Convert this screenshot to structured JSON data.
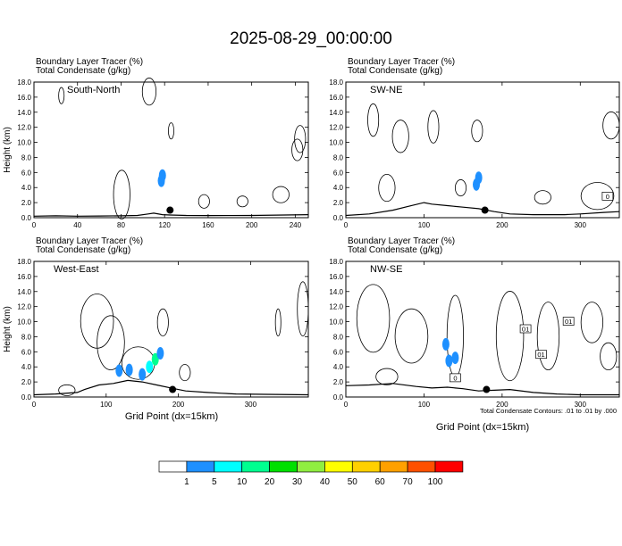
{
  "title": "2025-08-29_00:00:00",
  "panel_header": {
    "line1": "Boundary Layer Tracer   (%)",
    "line2": "Total Condensate   (g/kg)"
  },
  "footer_note": "Total Condensate Contours: .01 to .01 by .000",
  "colorbar": {
    "labels": [
      "1",
      "5",
      "10",
      "20",
      "30",
      "40",
      "50",
      "60",
      "70",
      "100"
    ],
    "colors": [
      "#ffffff",
      "#1e90ff",
      "#00ffff",
      "#00ff90",
      "#00e000",
      "#90ee40",
      "#ffff00",
      "#ffd000",
      "#ffa000",
      "#ff5000",
      "#ff0000"
    ]
  },
  "chart_data": [
    {
      "type": "heatmap",
      "name": "South-North",
      "ylabel": "Height (km)",
      "xlabel": "",
      "xlim": [
        0,
        252
      ],
      "ylim": [
        0,
        18
      ],
      "x_ticks": [
        0,
        40,
        80,
        120,
        160,
        200,
        240
      ],
      "y_ticks": [
        "0.0",
        "2.0",
        "4.0",
        "6.0",
        "8.0",
        "10.0",
        "12.0",
        "14.0",
        "16.0",
        "18.0"
      ],
      "marker": {
        "x": 125,
        "y": 1.0
      },
      "terrain": [
        [
          0,
          0.2
        ],
        [
          20,
          0.25
        ],
        [
          40,
          0.2
        ],
        [
          60,
          0.22
        ],
        [
          80,
          0.25
        ],
        [
          95,
          0.3
        ],
        [
          105,
          0.5
        ],
        [
          110,
          0.6
        ],
        [
          118,
          0.4
        ],
        [
          125,
          0.35
        ],
        [
          140,
          0.3
        ],
        [
          160,
          0.28
        ],
        [
          200,
          0.3
        ],
        [
          230,
          0.35
        ],
        [
          252,
          0.4
        ]
      ],
      "tracer": [
        {
          "x": 118,
          "y": 5.6,
          "value": 5
        },
        {
          "x": 117,
          "y": 4.9,
          "value": 5
        }
      ],
      "contour_labels": []
    },
    {
      "type": "heatmap",
      "name": "SW-NE",
      "ylabel": "",
      "xlabel": "",
      "xlim": [
        0,
        350
      ],
      "ylim": [
        0,
        18
      ],
      "x_ticks": [
        0,
        100,
        200,
        300
      ],
      "y_ticks": [
        "0.0",
        "2.0",
        "4.0",
        "6.0",
        "8.0",
        "10.0",
        "12.0",
        "14.0",
        "16.0",
        "18.0"
      ],
      "marker": {
        "x": 178,
        "y": 1.0
      },
      "terrain": [
        [
          0,
          0.3
        ],
        [
          30,
          0.5
        ],
        [
          60,
          1.0
        ],
        [
          80,
          1.5
        ],
        [
          100,
          2.0
        ],
        [
          110,
          1.8
        ],
        [
          130,
          1.6
        ],
        [
          150,
          1.4
        ],
        [
          170,
          1.2
        ],
        [
          190,
          0.8
        ],
        [
          210,
          0.5
        ],
        [
          240,
          0.4
        ],
        [
          280,
          0.4
        ],
        [
          300,
          0.5
        ],
        [
          330,
          0.7
        ],
        [
          350,
          0.8
        ]
      ],
      "tracer": [
        {
          "x": 170,
          "y": 5.3,
          "value": 5
        },
        {
          "x": 167,
          "y": 4.4,
          "value": 5
        }
      ],
      "contour_labels": [
        {
          "x": 335,
          "y": 2.8,
          "text": "0"
        }
      ]
    },
    {
      "type": "heatmap",
      "name": "West-East",
      "ylabel": "Height (km)",
      "xlabel": "Grid Point (dx=15km)",
      "xlim": [
        0,
        380
      ],
      "ylim": [
        0,
        18
      ],
      "x_ticks": [
        0,
        100,
        200,
        300
      ],
      "y_ticks": [
        "0.0",
        "2.0",
        "4.0",
        "6.0",
        "8.0",
        "10.0",
        "12.0",
        "14.0",
        "16.0",
        "18.0"
      ],
      "marker": {
        "x": 192,
        "y": 1.0
      },
      "terrain": [
        [
          0,
          0.3
        ],
        [
          30,
          0.4
        ],
        [
          60,
          0.6
        ],
        [
          70,
          1.0
        ],
        [
          90,
          1.6
        ],
        [
          110,
          1.8
        ],
        [
          130,
          2.2
        ],
        [
          150,
          2.0
        ],
        [
          170,
          1.6
        ],
        [
          190,
          1.2
        ],
        [
          210,
          0.8
        ],
        [
          240,
          0.6
        ],
        [
          260,
          0.5
        ],
        [
          280,
          0.4
        ],
        [
          320,
          0.35
        ],
        [
          380,
          0.3
        ]
      ],
      "tracer": [
        {
          "x": 118,
          "y": 3.5,
          "value": 5
        },
        {
          "x": 132,
          "y": 3.6,
          "value": 5
        },
        {
          "x": 150,
          "y": 3.0,
          "value": 5
        },
        {
          "x": 160,
          "y": 4.0,
          "value": 10
        },
        {
          "x": 168,
          "y": 5.0,
          "value": 20
        },
        {
          "x": 175,
          "y": 5.8,
          "value": 5
        }
      ],
      "contour_labels": []
    },
    {
      "type": "heatmap",
      "name": "NW-SE",
      "ylabel": "",
      "xlabel": "Grid Point (dx=15km)",
      "xlim": [
        0,
        350
      ],
      "ylim": [
        0,
        18
      ],
      "x_ticks": [
        0,
        100,
        200,
        300
      ],
      "y_ticks": [
        "0.0",
        "2.0",
        "4.0",
        "6.0",
        "8.0",
        "10.0",
        "12.0",
        "14.0",
        "16.0",
        "18.0"
      ],
      "marker": {
        "x": 180,
        "y": 1.0
      },
      "terrain": [
        [
          0,
          1.5
        ],
        [
          30,
          1.6
        ],
        [
          60,
          1.8
        ],
        [
          90,
          1.4
        ],
        [
          110,
          1.2
        ],
        [
          130,
          1.3
        ],
        [
          150,
          1.1
        ],
        [
          170,
          0.8
        ],
        [
          190,
          0.9
        ],
        [
          210,
          1.0
        ],
        [
          240,
          0.6
        ],
        [
          270,
          0.4
        ],
        [
          300,
          0.3
        ],
        [
          350,
          0.3
        ]
      ],
      "tracer": [
        {
          "x": 132,
          "y": 4.8,
          "value": 5
        },
        {
          "x": 128,
          "y": 7.0,
          "value": 5
        },
        {
          "x": 140,
          "y": 5.2,
          "value": 5
        }
      ],
      "contour_labels": [
        {
          "x": 140,
          "y": 2.5,
          "text": "0"
        },
        {
          "x": 230,
          "y": 9.0,
          "text": "01"
        },
        {
          "x": 250,
          "y": 5.6,
          "text": "01"
        },
        {
          "x": 285,
          "y": 10.0,
          "text": "01"
        }
      ]
    }
  ]
}
